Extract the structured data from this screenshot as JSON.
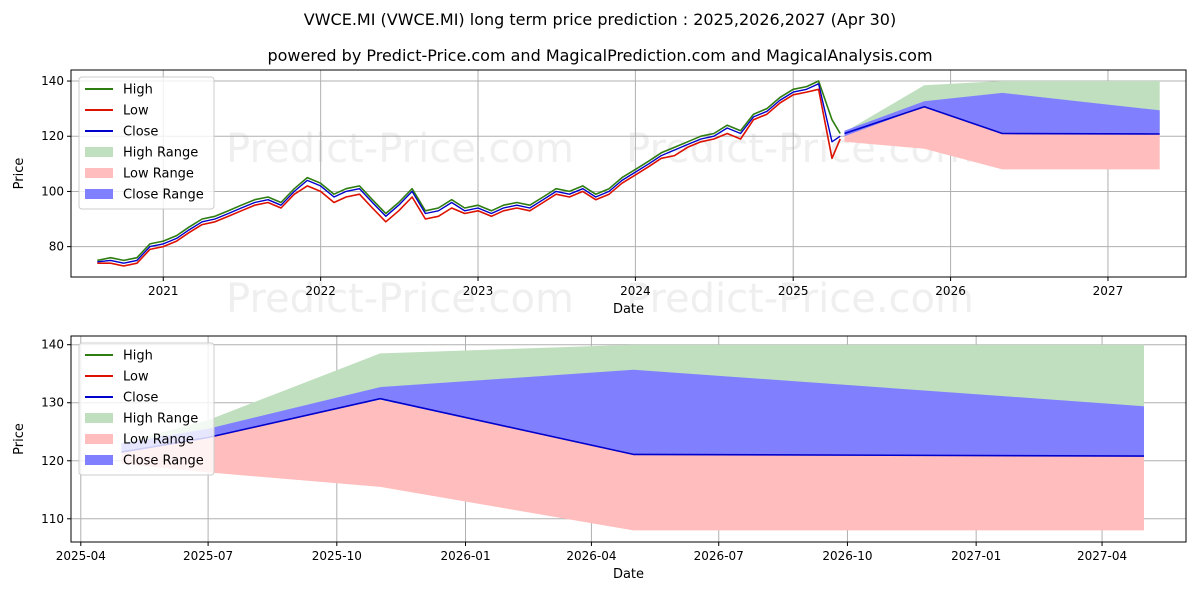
{
  "title": "VWCE.MI (VWCE.MI) long term price prediction : 2025,2026,2027 (Apr 30)",
  "subtitle": "powered by Predict-Price.com and MagicalPrediction.com and MagicalAnalysis.com",
  "watermark": "Predict-Price.com",
  "colors": {
    "high": "#2e7d10",
    "low": "#dd1100",
    "close": "#0000cc",
    "high_range": "#bfdfbf",
    "low_range": "#ffbdbd",
    "close_range": "#8080ff"
  },
  "legend": [
    {
      "key": "high",
      "label": "High",
      "kind": "line"
    },
    {
      "key": "low",
      "label": "Low",
      "kind": "line"
    },
    {
      "key": "close",
      "label": "Close",
      "kind": "line"
    },
    {
      "key": "high_range",
      "label": "High Range",
      "kind": "patch"
    },
    {
      "key": "low_range",
      "label": "Low Range",
      "kind": "patch"
    },
    {
      "key": "close_range",
      "label": "Close Range",
      "kind": "patch"
    }
  ],
  "chart_data": [
    {
      "type": "line",
      "xlabel": "Date",
      "ylabel": "Price",
      "xlim": [
        "2020-06-01",
        "2027-07-01"
      ],
      "ylim": [
        69,
        144
      ],
      "xticks": [
        "2021",
        "2022",
        "2023",
        "2024",
        "2025",
        "2026",
        "2027"
      ],
      "yticks": [
        80,
        100,
        120,
        140
      ],
      "grid": true,
      "legend_position": "top-left",
      "history": {
        "dates": [
          "2020-08-01",
          "2020-09-01",
          "2020-10-01",
          "2020-11-01",
          "2020-12-01",
          "2021-01-01",
          "2021-02-01",
          "2021-03-01",
          "2021-04-01",
          "2021-05-01",
          "2021-06-01",
          "2021-07-01",
          "2021-08-01",
          "2021-09-01",
          "2021-10-01",
          "2021-11-01",
          "2021-12-01",
          "2022-01-01",
          "2022-02-01",
          "2022-03-01",
          "2022-04-01",
          "2022-05-01",
          "2022-06-01",
          "2022-07-01",
          "2022-08-01",
          "2022-09-01",
          "2022-10-01",
          "2022-11-01",
          "2022-12-01",
          "2023-01-01",
          "2023-02-01",
          "2023-03-01",
          "2023-04-01",
          "2023-05-01",
          "2023-06-01",
          "2023-07-01",
          "2023-08-01",
          "2023-09-01",
          "2023-10-01",
          "2023-11-01",
          "2023-12-01",
          "2024-01-01",
          "2024-02-01",
          "2024-03-01",
          "2024-04-01",
          "2024-05-01",
          "2024-06-01",
          "2024-07-01",
          "2024-08-01",
          "2024-09-01",
          "2024-10-01",
          "2024-11-01",
          "2024-12-01",
          "2025-01-01",
          "2025-02-01",
          "2025-03-01",
          "2025-04-01",
          "2025-04-20"
        ],
        "high": [
          75,
          76,
          75,
          76,
          81,
          82,
          84,
          87,
          90,
          91,
          93,
          95,
          97,
          98,
          96,
          101,
          105,
          103,
          99,
          101,
          102,
          97,
          92,
          96,
          101,
          93,
          94,
          97,
          94,
          95,
          93,
          95,
          96,
          95,
          98,
          101,
          100,
          102,
          99,
          101,
          105,
          108,
          111,
          114,
          116,
          118,
          120,
          121,
          124,
          122,
          128,
          130,
          134,
          137,
          138,
          140,
          126,
          121
        ],
        "low": [
          74,
          74,
          73,
          74,
          79,
          80,
          82,
          85,
          88,
          89,
          91,
          93,
          95,
          96,
          94,
          99,
          102,
          100,
          96,
          98,
          99,
          94,
          89,
          93,
          98,
          90,
          91,
          94,
          92,
          93,
          91,
          93,
          94,
          93,
          96,
          99,
          98,
          100,
          97,
          99,
          103,
          106,
          109,
          112,
          113,
          116,
          118,
          119,
          121,
          119,
          126,
          128,
          132,
          135,
          136,
          137,
          112,
          119
        ],
        "close": [
          74.5,
          75,
          74,
          75,
          80,
          81,
          83,
          86,
          89,
          90,
          92,
          94,
          96,
          97,
          95,
          100,
          104,
          102,
          98,
          100,
          101,
          96,
          91,
          95,
          100,
          92,
          93,
          96,
          93,
          94,
          92,
          94,
          95,
          94,
          97,
          100,
          99,
          101,
          98,
          100,
          104,
          107,
          110,
          113,
          115,
          117,
          119,
          120,
          123,
          121,
          127,
          129,
          133,
          136,
          137,
          139,
          118,
          120
        ]
      },
      "forecast": {
        "dates": [
          "2025-04-30",
          "2025-11-01",
          "2026-05-01",
          "2027-05-01"
        ],
        "close": [
          121,
          130.7,
          121,
          120.8
        ],
        "high_range": {
          "lower": [
            121,
            123,
            124,
            122
          ],
          "upper": [
            121.5,
            138.5,
            140,
            140
          ]
        },
        "low_range": {
          "lower": [
            118,
            115.5,
            108,
            108
          ],
          "upper": [
            122,
            130.5,
            121,
            120.8
          ]
        },
        "close_range": {
          "lower": [
            120,
            130.7,
            121,
            120.8
          ],
          "upper": [
            122,
            132.7,
            135.7,
            129.4
          ]
        }
      }
    },
    {
      "type": "line",
      "xlabel": "Date",
      "ylabel": "Price",
      "xlim": [
        "2025-03-25",
        "2027-05-31"
      ],
      "ylim": [
        106,
        141.5
      ],
      "xticks": [
        "2025-04",
        "2025-07",
        "2025-10",
        "2026-01",
        "2026-04",
        "2026-07",
        "2026-10",
        "2027-01",
        "2027-04"
      ],
      "yticks": [
        110,
        120,
        130,
        140
      ],
      "grid": true,
      "legend_position": "top-left",
      "forecast": {
        "dates": [
          "2025-04-30",
          "2025-07-01",
          "2025-11-01",
          "2026-05-01",
          "2027-05-01"
        ],
        "close": [
          121.5,
          124,
          130.7,
          121.1,
          120.8
        ],
        "high_range": {
          "lower": [
            122,
            125,
            131,
            130,
            129.4
          ],
          "upper": [
            123,
            127,
            138.5,
            140,
            140
          ]
        },
        "low_range": {
          "lower": [
            119.5,
            118,
            115.5,
            108,
            108
          ],
          "upper": [
            121.5,
            124,
            130.5,
            121.1,
            120.8
          ]
        },
        "close_range": {
          "lower": [
            121.5,
            124,
            130.7,
            121.1,
            120.8
          ],
          "upper": [
            123,
            125.5,
            132.7,
            135.7,
            129.4
          ]
        }
      }
    }
  ]
}
